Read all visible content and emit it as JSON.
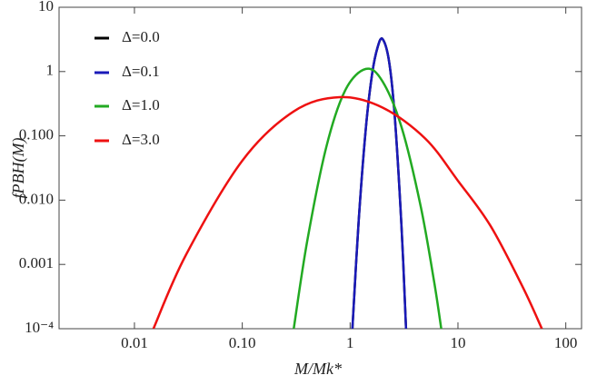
{
  "chart_data": {
    "type": "line",
    "x_label": "M/Mk*",
    "y_label": "fPBH(M)",
    "xlog": true,
    "ylog": true,
    "xlim": [
      0.002,
      140
    ],
    "ylim": [
      0.0001,
      10
    ],
    "xticks": [
      0.01,
      {
        "value": 0.1,
        "label": "0.10"
      },
      1,
      10,
      100
    ],
    "yticks": [
      {
        "value": 0.0001,
        "label": "10⁻⁴"
      },
      0.001,
      {
        "value": 0.01,
        "label": "0.010"
      },
      {
        "value": 0.1,
        "label": "0.100"
      },
      1,
      10
    ],
    "legend": "upper left",
    "series": [
      {
        "name": "Δ=0.0",
        "color": "#000000",
        "x": [
          1.05,
          1.2,
          1.4,
          1.6,
          1.8,
          2,
          2.3,
          2.6,
          3,
          3.3
        ],
        "values": [
          0.0001,
          0.0047,
          0.133,
          0.92,
          2.4,
          3.2,
          1.42,
          0.19,
          0.0037,
          0.0001
        ]
      },
      {
        "name": "Δ=0.1",
        "color": "#1a1ab8",
        "x": [
          1.05,
          1.2,
          1.4,
          1.6,
          1.8,
          2,
          2.3,
          2.6,
          3,
          3.3
        ],
        "values": [
          0.0001,
          0.0047,
          0.133,
          0.92,
          2.4,
          3.2,
          1.42,
          0.19,
          0.0037,
          0.0001
        ]
      },
      {
        "name": "Δ=1.0",
        "color": "#22aa22",
        "x": [
          0.3,
          0.4,
          0.6,
          0.9,
          1.4,
          2,
          3,
          4.5,
          6,
          7
        ],
        "values": [
          0.0001,
          0.0023,
          0.066,
          0.51,
          1.1,
          0.7,
          0.136,
          0.0082,
          0.00055,
          0.0001
        ]
      },
      {
        "name": "Δ=3.0",
        "color": "#ee1111",
        "x": [
          0.015,
          0.03,
          0.1,
          0.3,
          0.8,
          2,
          5,
          10,
          20,
          40,
          60
        ],
        "values": [
          0.0001,
          0.0014,
          0.041,
          0.24,
          0.4,
          0.275,
          0.09,
          0.02,
          0.004,
          0.00044,
          0.0001
        ]
      }
    ]
  }
}
